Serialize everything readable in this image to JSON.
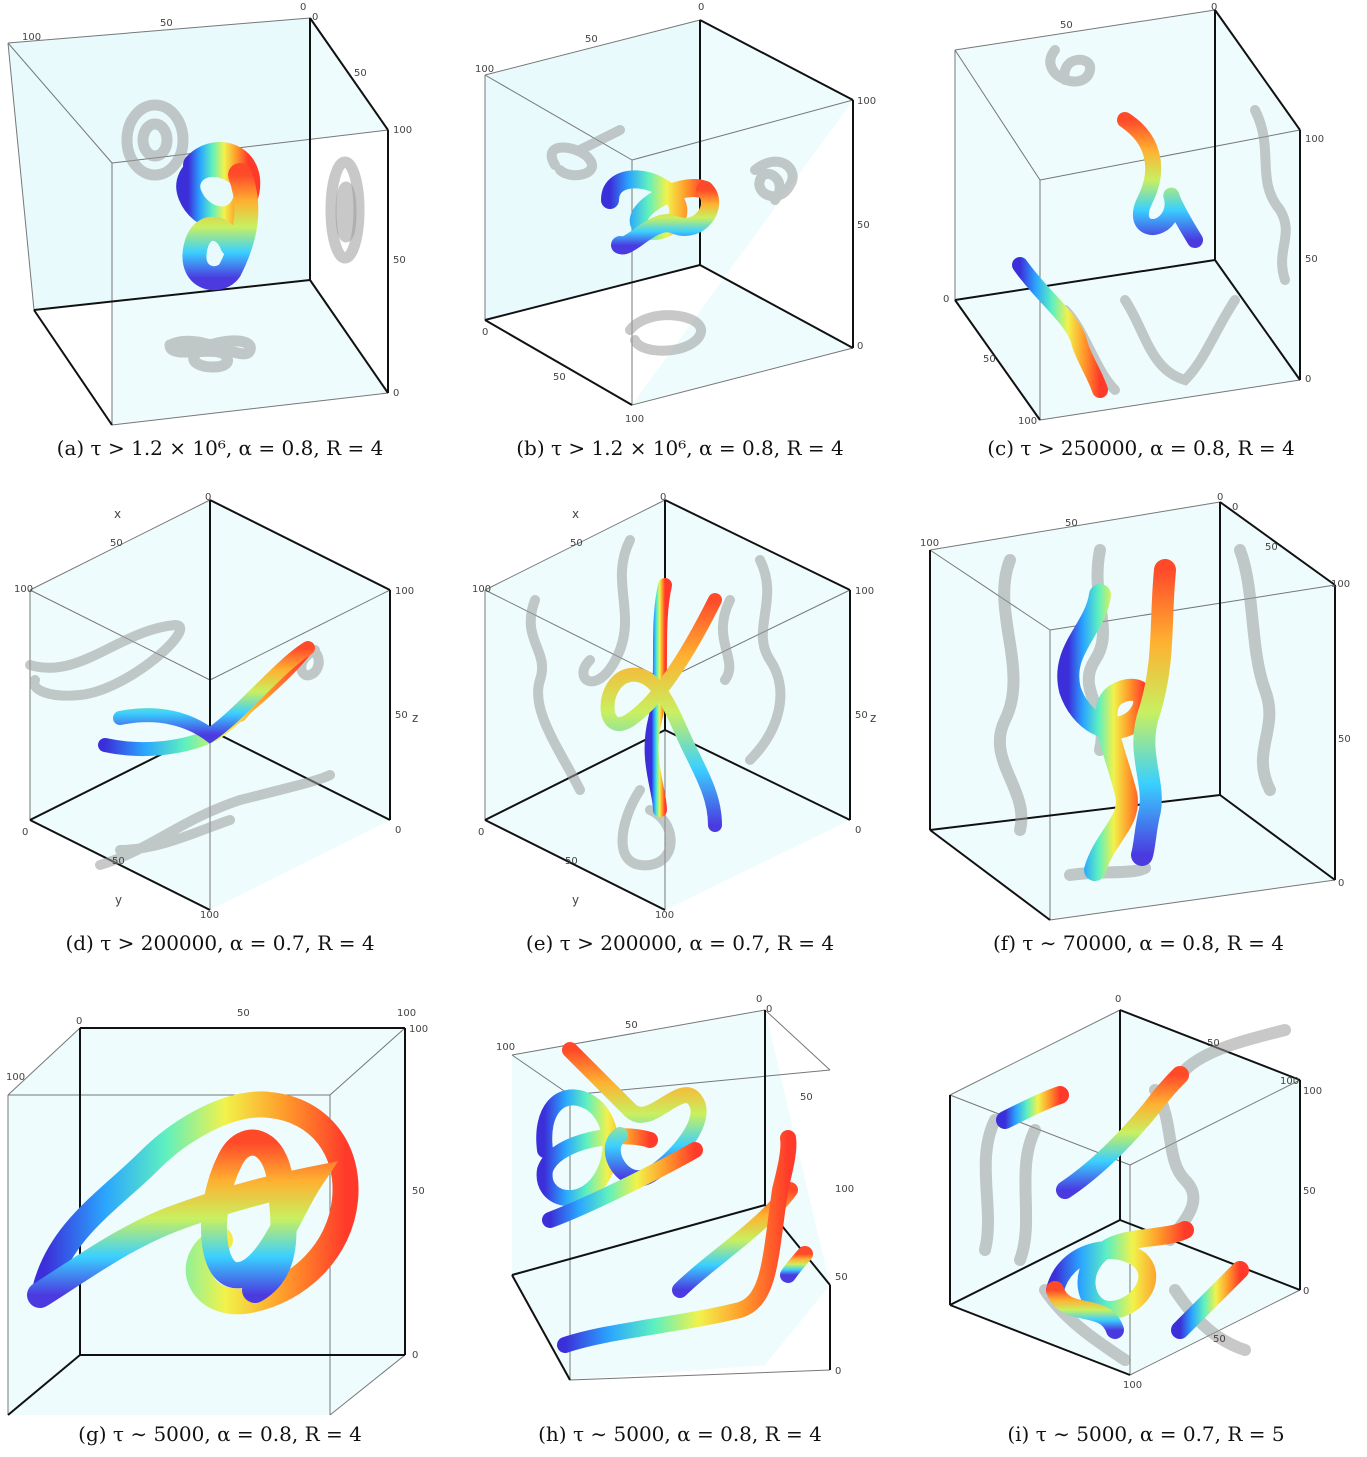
{
  "figure": {
    "panels": [
      {
        "id": "a",
        "caption": "(a) τ > 1.2 × 10⁶, α = 0.8, R = 4",
        "ticks": {
          "t0": "0",
          "t50": "50",
          "t100": "100",
          "r100": "100",
          "r50": "50",
          "r0": "0",
          "u0": "0",
          "u50": "50"
        },
        "axis_labels": {}
      },
      {
        "id": "b",
        "caption": "(b) τ > 1.2 × 10⁶, α = 0.8, R = 4",
        "ticks": {
          "t0": "0",
          "t50": "50",
          "t100": "100",
          "r100": "100",
          "r50": "50",
          "r0": "0",
          "u0": "0",
          "u50": "50",
          "u100": "100"
        },
        "axis_labels": {}
      },
      {
        "id": "c",
        "caption": "(c) τ > 250000, α = 0.8, R = 4",
        "ticks": {
          "t0": "0",
          "t50": "50",
          "r100": "100",
          "r50": "50",
          "r0": "0",
          "l0": "0",
          "l50": "50",
          "l100": "100"
        },
        "axis_labels": {}
      },
      {
        "id": "d",
        "caption": "(d) τ > 200000, α = 0.7, R = 4",
        "ticks": {
          "t0": "0",
          "t50": "50",
          "t100": "100",
          "r100": "100",
          "r50": "50",
          "r0": "0",
          "l0": "0",
          "l50": "50",
          "l100": "100"
        },
        "axis_labels": {
          "x": "x",
          "y": "y",
          "z": "z"
        }
      },
      {
        "id": "e",
        "caption": "(e) τ > 200000, α = 0.7, R = 4",
        "ticks": {
          "t0": "0",
          "t50": "50",
          "t100": "100",
          "r100": "100",
          "r50": "50",
          "r0": "0",
          "l0": "0",
          "l50": "50",
          "l100": "100"
        },
        "axis_labels": {
          "x": "x",
          "y": "y",
          "z": "z"
        }
      },
      {
        "id": "f",
        "caption": "(f) τ ∼ 70000, α = 0.8, R = 4",
        "ticks": {
          "t0": "0",
          "t50": "50",
          "t100": "100",
          "u0": "0",
          "u50": "50",
          "u100": "100",
          "r50": "50",
          "r0": "0"
        },
        "axis_labels": {}
      },
      {
        "id": "g",
        "caption": "(g) τ ∼ 5000, α = 0.8, R = 4",
        "ticks": {
          "t0": "0",
          "t50": "50",
          "t100": "100",
          "u100": "100",
          "l100": "100",
          "r50": "50",
          "r0": "0"
        },
        "axis_labels": {}
      },
      {
        "id": "h",
        "caption": "(h) τ ∼ 5000, α = 0.8, R = 4",
        "ticks": {
          "t0": "0",
          "t50": "50",
          "t100": "100",
          "u0": "0",
          "u50": "50",
          "r100": "100",
          "r50": "50",
          "r0": "0"
        },
        "axis_labels": {}
      },
      {
        "id": "i",
        "caption": "(i) τ ∼ 5000, α = 0.7, R = 5",
        "ticks": {
          "t0": "0",
          "t50": "50",
          "t100": "100",
          "r100": "100",
          "r50": "50",
          "r0": "0",
          "l50": "50",
          "l100": "100"
        },
        "axis_labels": {}
      }
    ],
    "colors": {
      "box_fill": "#eefcfd",
      "edge_dark": "#111111",
      "edge_light": "#777777",
      "shadow": "#9a9a9a"
    }
  }
}
